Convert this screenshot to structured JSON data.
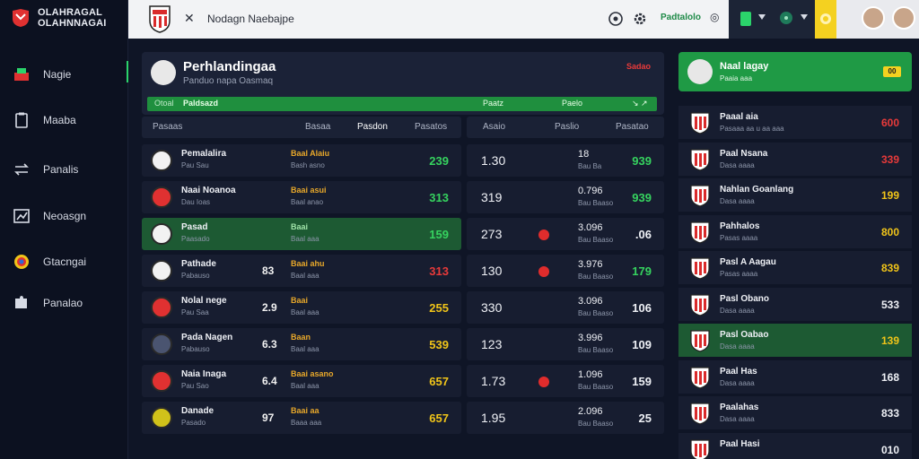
{
  "brand": {
    "line1": "OLAHRAGAL",
    "line2": "OLAHNNAGAI"
  },
  "sidebar": {
    "items": [
      {
        "label": "Nagie"
      },
      {
        "label": "Maaba"
      },
      {
        "label": "Panalis"
      },
      {
        "label": "Neoasgn"
      },
      {
        "label": "Gtacngai"
      },
      {
        "label": "Panalao"
      }
    ]
  },
  "topbar": {
    "close": "✕",
    "search_text": "Nodagn Naebajpe",
    "link": "Padtalolo",
    "tag_right": "◎"
  },
  "header": {
    "title": "Perhlandingaa",
    "subtitle": "Panduo napa Oasmaq",
    "live_label": "Sadao",
    "filter_left": "Otoal",
    "filter_main": "Paldsazd",
    "filter_mid": "Paatz",
    "filter_mid2": "Paelo",
    "filter_end": "↘ ↗"
  },
  "left_table": {
    "headers": {
      "col1": "Pasaas",
      "col2": "Basaa",
      "col3": "Pasdon",
      "col4": "Pasatos"
    },
    "rows": [
      {
        "name": "Pemalalira",
        "sub": "Pau Sau",
        "mid": "",
        "tag": "Baal Alaiu",
        "tag2": "Bash asno",
        "score": "239",
        "score_color": "#36d35f",
        "icon_color": "#f2f2f2",
        "hl": false
      },
      {
        "name": "Naai Noanoa",
        "sub": "Dau Ioas",
        "mid": "",
        "tag": "Baai asui",
        "tag2": "Baal anao",
        "score": "313",
        "score_color": "#36d35f",
        "icon_color": "#e03131",
        "hl": false
      },
      {
        "name": "Pasad",
        "sub": "Paasado",
        "mid": "",
        "tag": "Baai",
        "tag2": "Baal aaa",
        "score": "159",
        "score_color": "#36d35f",
        "icon_color": "#f2f2f2",
        "hl": true
      },
      {
        "name": "Pathade",
        "sub": "Pabauso",
        "mid": "83",
        "tag": "Baai ahu",
        "tag2": "Baal aaa",
        "score": "313",
        "score_color": "#e83a3a",
        "icon_color": "#f2f2f2",
        "hl": false
      },
      {
        "name": "Nolal nege",
        "sub": "Pau Saa",
        "mid": "2.9",
        "tag": "Baai",
        "tag2": "Baal aaa",
        "score": "255",
        "score_color": "#f0c419",
        "icon_color": "#e03131",
        "hl": false
      },
      {
        "name": "Pada Nagen",
        "sub": "Pabauso",
        "mid": "6.3",
        "tag": "Baan",
        "tag2": "Baal aaa",
        "score": "539",
        "score_color": "#f0c419",
        "icon_color": "#4a5470",
        "hl": false
      },
      {
        "name": "Naia Inaga",
        "sub": "Pau Sao",
        "mid": "6.4",
        "tag": "Baai asano",
        "tag2": "Baal aaa",
        "score": "657",
        "score_color": "#f0c419",
        "icon_color": "#e03131",
        "hl": false
      },
      {
        "name": "Danade",
        "sub": "Pasado",
        "mid": "97",
        "tag": "Baai aa",
        "tag2": "Baaa aaa",
        "score": "657",
        "score_color": "#f0c419",
        "icon_color": "#d1c21a",
        "hl": false
      }
    ]
  },
  "mid_table": {
    "headers": {
      "col1": "Asaio",
      "col2": "Paslio",
      "col3": "Pasatao"
    },
    "rows": [
      {
        "a": "1.30",
        "b": "18",
        "b2": "Bau Ba",
        "c": "939",
        "c_color": "#36d35f",
        "dot": false
      },
      {
        "a": "319",
        "b": "0.796",
        "b2": "Bau Baaso",
        "c": "939",
        "c_color": "#36d35f",
        "dot": false
      },
      {
        "a": "273",
        "b": "3.096",
        "b2": "Bau Baaso",
        "c": ".06",
        "c_color": "#eef0f5",
        "dot": true
      },
      {
        "a": "130",
        "b": "3.976",
        "b2": "Bau Baaso",
        "c": "179",
        "c_color": "#36d35f",
        "dot": true
      },
      {
        "a": "330",
        "b": "3.096",
        "b2": "Bau Baaso",
        "c": "106",
        "c_color": "#eef0f5",
        "dot": false
      },
      {
        "a": "123",
        "b": "3.996",
        "b2": "Bau Baaso",
        "c": "109",
        "c_color": "#eef0f5",
        "dot": false
      },
      {
        "a": "1.73",
        "b": "1.096",
        "b2": "Bau Baaso",
        "c": "159",
        "c_color": "#eef0f5",
        "dot": true
      },
      {
        "a": "1.95",
        "b": "2.096",
        "b2": "Bau Baaso",
        "c": "25",
        "c_color": "#eef0f5",
        "dot": false
      }
    ]
  },
  "right_panel": {
    "head": {
      "title": "Naal lagay",
      "sub": "Paaia aaa",
      "tag": "00"
    },
    "rows": [
      {
        "name": "Paaal aia",
        "sub": "Pasaaa aa u aa aaa",
        "value": "600",
        "v_color": "#e83a3a",
        "hl": false
      },
      {
        "name": "Paal Nsana",
        "sub": "Dasa aaaa",
        "value": "339",
        "v_color": "#e83a3a",
        "hl": false
      },
      {
        "name": "Nahlan Goanlang",
        "sub": "Dasa aaaa",
        "value": "199",
        "v_color": "#f0c419",
        "hl": false
      },
      {
        "name": "Pahhalos",
        "sub": "Pasas aaaa",
        "value": "800",
        "v_color": "#f0c419",
        "hl": false
      },
      {
        "name": "Pasl A Aagau",
        "sub": "Pasas aaaa",
        "value": "839",
        "v_color": "#f0c419",
        "hl": false
      },
      {
        "name": "Pasl Obano",
        "sub": "Dasa aaaa",
        "value": "533",
        "v_color": "#eef0f5",
        "hl": false
      },
      {
        "name": "Pasl Oabao",
        "sub": "Dasa aaaa",
        "value": "139",
        "v_color": "#f0c419",
        "hl": true
      },
      {
        "name": "Paal Has",
        "sub": "Dasa aaaa",
        "value": "168",
        "v_color": "#eef0f5",
        "hl": false
      },
      {
        "name": "Paalahas",
        "sub": "Dasa aaaa",
        "value": "833",
        "v_color": "#eef0f5",
        "hl": false
      },
      {
        "name": "Paal Hasi",
        "sub": "",
        "value": "010",
        "v_color": "#eef0f5",
        "hl": false
      }
    ]
  }
}
